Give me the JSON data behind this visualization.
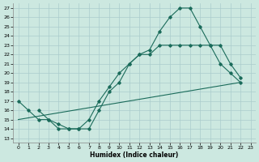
{
  "xlabel": "Humidex (Indice chaleur)",
  "xlim": [
    -0.5,
    23.5
  ],
  "ylim": [
    12.5,
    27.5
  ],
  "xticks": [
    0,
    1,
    2,
    3,
    4,
    5,
    6,
    7,
    8,
    9,
    10,
    11,
    12,
    13,
    14,
    15,
    16,
    17,
    18,
    19,
    20,
    21,
    22,
    23
  ],
  "yticks": [
    13,
    14,
    15,
    16,
    17,
    18,
    19,
    20,
    21,
    22,
    23,
    24,
    25,
    26,
    27
  ],
  "bg_color": "#cce8e0",
  "line_color": "#1a6b5a",
  "grid_color": "#aacccc",
  "line1_x": [
    0,
    1,
    2,
    3,
    4,
    5,
    6,
    7,
    8,
    9,
    10,
    11,
    12,
    13,
    14,
    15,
    16,
    17,
    18,
    19,
    20,
    21,
    22
  ],
  "line1_y": [
    17,
    16,
    15,
    15,
    14,
    14,
    14,
    14,
    16,
    18,
    19,
    21,
    22,
    22.5,
    24.5,
    26,
    27,
    27,
    25,
    23,
    21,
    20,
    19
  ],
  "line2_x": [
    2,
    3,
    4,
    5,
    6,
    7,
    8,
    9,
    10,
    11,
    12,
    13,
    14,
    15,
    16,
    17,
    18,
    19,
    20,
    21,
    22
  ],
  "line2_y": [
    16,
    15,
    14.5,
    14,
    14,
    15,
    17,
    18.5,
    20,
    21,
    22,
    22,
    23,
    23,
    23,
    23,
    23,
    23,
    23,
    21,
    19.5
  ],
  "line3_x": [
    0,
    22
  ],
  "line3_y": [
    15,
    19
  ]
}
